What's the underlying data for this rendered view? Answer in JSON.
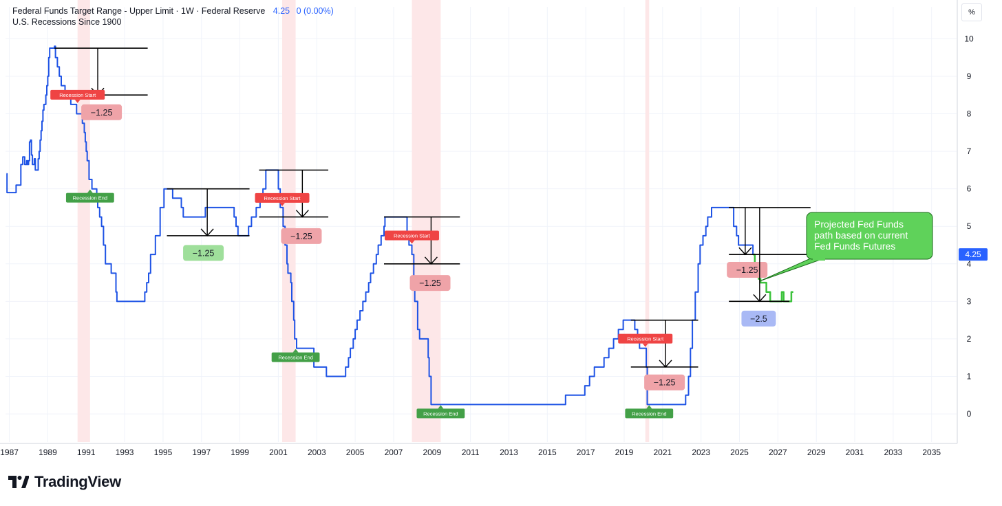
{
  "header": {
    "title": "Federal Funds Target Range - Upper Limit · 1W · Federal Reserve",
    "last_value": "4.25",
    "change": "0 (0.00%)",
    "overlay": "U.S. Recessions Since 1900"
  },
  "unit_label": "%",
  "brand": {
    "name": "TradingView"
  },
  "colors": {
    "series": "#1e53e5",
    "projection": "#3bc23b",
    "recession_band": "#fde7e8",
    "recession_start": "#ef4444",
    "recession_end": "#43a047",
    "badge_red": "#efa3a8",
    "badge_green": "#9fdf9b",
    "badge_blue": "#a9b9f5",
    "callout": "#5fd25a",
    "axis_text": "#131722",
    "grid": "#f0f3fa"
  },
  "chart_data": {
    "type": "line",
    "xlim": [
      1986.8,
      2036.3
    ],
    "ylim": [
      -0.75,
      10.3
    ],
    "x_ticks": [
      "1987",
      "1989",
      "1991",
      "1993",
      "1995",
      "1997",
      "1999",
      "2001",
      "2003",
      "2005",
      "2007",
      "2009",
      "2011",
      "2013",
      "2015",
      "2017",
      "2019",
      "2021",
      "2023",
      "2025",
      "2027",
      "2029",
      "2031",
      "2033",
      "2035"
    ],
    "y_ticks": [
      "0",
      "1",
      "2",
      "3",
      "4",
      "5",
      "6",
      "7",
      "8",
      "9",
      "10"
    ],
    "last_value_tag": "4.25",
    "series": [
      {
        "values": [
          [
            1986.85,
            6.4
          ],
          [
            1986.88,
            5.9
          ],
          [
            1987.3,
            5.9
          ],
          [
            1987.35,
            6.1
          ],
          [
            1987.55,
            6.1
          ],
          [
            1987.6,
            6.65
          ],
          [
            1987.7,
            6.85
          ],
          [
            1987.8,
            6.65
          ],
          [
            1987.9,
            6.75
          ],
          [
            1987.95,
            6.65
          ],
          [
            1988.0,
            6.75
          ],
          [
            1988.05,
            7.25
          ],
          [
            1988.1,
            7.3
          ],
          [
            1988.15,
            6.9
          ],
          [
            1988.2,
            6.65
          ],
          [
            1988.3,
            6.8
          ],
          [
            1988.35,
            6.5
          ],
          [
            1988.45,
            6.5
          ],
          [
            1988.5,
            6.8
          ],
          [
            1988.55,
            7.0
          ],
          [
            1988.6,
            7.3
          ],
          [
            1988.65,
            7.55
          ],
          [
            1988.7,
            7.8
          ],
          [
            1988.75,
            8.1
          ],
          [
            1988.8,
            8.25
          ],
          [
            1988.9,
            8.5
          ],
          [
            1988.95,
            8.75
          ],
          [
            1989.0,
            9.0
          ],
          [
            1989.05,
            9.5
          ],
          [
            1989.1,
            9.75
          ],
          [
            1989.35,
            9.8
          ],
          [
            1989.4,
            9.5
          ],
          [
            1989.5,
            9.25
          ],
          [
            1989.6,
            9.0
          ],
          [
            1989.7,
            8.75
          ],
          [
            1989.9,
            8.5
          ],
          [
            1990.2,
            8.25
          ],
          [
            1990.5,
            8.0
          ],
          [
            1990.8,
            7.75
          ],
          [
            1990.9,
            7.5
          ],
          [
            1990.95,
            7.25
          ],
          [
            1991.0,
            7.0
          ],
          [
            1991.05,
            6.75
          ],
          [
            1991.15,
            6.25
          ],
          [
            1991.3,
            6.0
          ],
          [
            1991.55,
            5.75
          ],
          [
            1991.6,
            5.5
          ],
          [
            1991.7,
            5.25
          ],
          [
            1991.8,
            5.0
          ],
          [
            1991.9,
            4.5
          ],
          [
            1992.0,
            4.0
          ],
          [
            1992.3,
            3.75
          ],
          [
            1992.55,
            3.25
          ],
          [
            1992.6,
            3.0
          ],
          [
            1994.05,
            3.25
          ],
          [
            1994.15,
            3.5
          ],
          [
            1994.25,
            3.75
          ],
          [
            1994.35,
            4.25
          ],
          [
            1994.6,
            4.75
          ],
          [
            1994.85,
            5.5
          ],
          [
            1995.05,
            6.0
          ],
          [
            1995.5,
            5.75
          ],
          [
            1995.95,
            5.5
          ],
          [
            1996.05,
            5.25
          ],
          [
            1997.2,
            5.5
          ],
          [
            1998.7,
            5.25
          ],
          [
            1998.8,
            5.0
          ],
          [
            1998.9,
            4.75
          ],
          [
            1999.45,
            5.0
          ],
          [
            1999.6,
            5.25
          ],
          [
            1999.85,
            5.5
          ],
          [
            2000.05,
            5.75
          ],
          [
            2000.2,
            6.0
          ],
          [
            2000.35,
            6.5
          ],
          [
            2001.0,
            6.0
          ],
          [
            2001.1,
            5.5
          ],
          [
            2001.25,
            5.0
          ],
          [
            2001.35,
            4.5
          ],
          [
            2001.45,
            4.0
          ],
          [
            2001.5,
            3.75
          ],
          [
            2001.65,
            3.5
          ],
          [
            2001.7,
            3.0
          ],
          [
            2001.8,
            2.5
          ],
          [
            2001.85,
            2.0
          ],
          [
            2001.95,
            1.75
          ],
          [
            2002.85,
            1.25
          ],
          [
            2003.5,
            1.0
          ],
          [
            2004.5,
            1.25
          ],
          [
            2004.65,
            1.5
          ],
          [
            2004.75,
            1.75
          ],
          [
            2004.9,
            2.0
          ],
          [
            2005.0,
            2.25
          ],
          [
            2005.1,
            2.5
          ],
          [
            2005.25,
            2.75
          ],
          [
            2005.4,
            3.0
          ],
          [
            2005.55,
            3.25
          ],
          [
            2005.7,
            3.5
          ],
          [
            2005.8,
            3.75
          ],
          [
            2005.95,
            4.0
          ],
          [
            2006.1,
            4.25
          ],
          [
            2006.2,
            4.5
          ],
          [
            2006.35,
            4.75
          ],
          [
            2006.5,
            5.0
          ],
          [
            2006.55,
            5.25
          ],
          [
            2007.7,
            4.75
          ],
          [
            2007.8,
            4.5
          ],
          [
            2007.95,
            4.25
          ],
          [
            2008.05,
            3.5
          ],
          [
            2008.1,
            3.0
          ],
          [
            2008.25,
            2.25
          ],
          [
            2008.35,
            2.0
          ],
          [
            2008.8,
            1.5
          ],
          [
            2008.85,
            1.0
          ],
          [
            2008.95,
            0.25
          ],
          [
            2015.95,
            0.5
          ],
          [
            2016.95,
            0.75
          ],
          [
            2017.2,
            1.0
          ],
          [
            2017.45,
            1.25
          ],
          [
            2017.95,
            1.5
          ],
          [
            2018.2,
            1.75
          ],
          [
            2018.45,
            2.0
          ],
          [
            2018.7,
            2.25
          ],
          [
            2018.95,
            2.5
          ],
          [
            2019.55,
            2.25
          ],
          [
            2019.7,
            2.0
          ],
          [
            2019.8,
            1.75
          ],
          [
            2020.15,
            1.25
          ],
          [
            2020.2,
            0.25
          ],
          [
            2022.2,
            0.5
          ],
          [
            2022.35,
            1.0
          ],
          [
            2022.45,
            1.75
          ],
          [
            2022.55,
            2.5
          ],
          [
            2022.7,
            3.25
          ],
          [
            2022.85,
            4.0
          ],
          [
            2022.95,
            4.5
          ],
          [
            2023.1,
            4.75
          ],
          [
            2023.25,
            5.0
          ],
          [
            2023.35,
            5.25
          ],
          [
            2023.55,
            5.5
          ],
          [
            2024.7,
            5.0
          ],
          [
            2024.85,
            4.75
          ],
          [
            2024.95,
            4.5
          ],
          [
            2025.7,
            4.25
          ]
        ]
      },
      {
        "values": [
          [
            2025.7,
            4.25
          ],
          [
            2025.8,
            3.9
          ],
          [
            2025.9,
            3.75
          ],
          [
            2026.0,
            3.6
          ],
          [
            2026.1,
            3.5
          ],
          [
            2026.4,
            3.25
          ],
          [
            2026.6,
            3.0
          ],
          [
            2027.0,
            3.0
          ],
          [
            2027.2,
            3.25
          ],
          [
            2027.3,
            3.0
          ],
          [
            2027.6,
            3.0
          ],
          [
            2027.7,
            3.25
          ],
          [
            2027.8,
            3.25
          ]
        ]
      }
    ],
    "recessions": [
      {
        "start": 1990.55,
        "end": 1991.2,
        "start_label": "Recession Start",
        "end_label": "Recession End",
        "start_y": 8.25,
        "end_y": 6.0
      },
      {
        "start": 2001.2,
        "end": 2001.9,
        "start_label": "Recession Start",
        "end_label": "Recession End",
        "start_y": 5.5,
        "end_y": 1.75
      },
      {
        "start": 2007.95,
        "end": 2009.45,
        "start_label": "Recession Start",
        "end_label": "Recession End",
        "start_y": 4.5,
        "end_y": 0.25
      },
      {
        "start": 2020.1,
        "end": 2020.3,
        "start_label": "Recession Start",
        "end_label": "Recession End",
        "start_y": 1.75,
        "end_y": 0.25
      }
    ],
    "annotations": [
      {
        "x1": 1989.35,
        "x2": 1994.2,
        "y_top": 9.75,
        "y_bot": 8.5,
        "arrow_x": 1991.6,
        "badge": "−1.25",
        "badge_x": 1991.8,
        "badge_y": 8.05,
        "color": "red"
      },
      {
        "x1": 1995.2,
        "x2": 1999.5,
        "y_top": 6.0,
        "y_bot": 4.75,
        "arrow_x": 1997.3,
        "badge": "−1.25",
        "badge_x": 1997.1,
        "badge_y": 4.3,
        "color": "green"
      },
      {
        "x1": 2000.0,
        "x2": 2003.6,
        "y_top": 6.5,
        "y_bot": 5.25,
        "arrow_x": 2002.25,
        "badge": "−1.25",
        "badge_x": 2002.2,
        "badge_y": 4.75,
        "color": "red"
      },
      {
        "x1": 2006.5,
        "x2": 2010.45,
        "y_top": 5.25,
        "y_bot": 4.0,
        "arrow_x": 2008.95,
        "badge": "−1.25",
        "badge_x": 2008.9,
        "badge_y": 3.5,
        "color": "red"
      },
      {
        "x1": 2019.35,
        "x2": 2022.85,
        "y_top": 2.5,
        "y_bot": 1.25,
        "arrow_x": 2021.15,
        "badge": "−1.25",
        "badge_x": 2021.1,
        "badge_y": 0.85,
        "color": "red"
      },
      {
        "x1": 2024.45,
        "x2": 2028.7,
        "y_top": 5.5,
        "y_bot": 4.25,
        "arrow_x": 2025.3,
        "badge": "−1.25",
        "badge_x": 2025.4,
        "badge_y": 3.85,
        "color": "red"
      },
      {
        "x1": 2024.45,
        "x2": 2027.6,
        "y_top": 5.5,
        "y_bot": 3.0,
        "arrow_x": 2026.05,
        "badge": "−2.5",
        "badge_x": 2026.0,
        "badge_y": 2.55,
        "color": "blue",
        "no_top": true
      }
    ],
    "callout": {
      "lines": [
        "Projected Fed Funds",
        "path based on current",
        "Fed Funds Futures"
      ],
      "tail_x": 2026.1,
      "tail_y": 3.55
    }
  }
}
